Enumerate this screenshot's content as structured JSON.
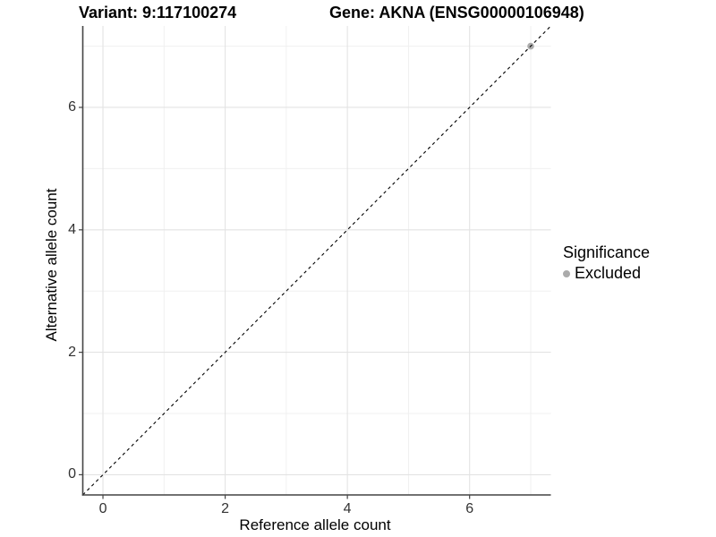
{
  "chart_data": {
    "type": "scatter",
    "titles": {
      "left": "Variant: 9:117100274",
      "right": "Gene: AKNA (ENSG00000106948)"
    },
    "xlabel": "Reference allele count",
    "ylabel": "Alternative allele count",
    "xlim": [
      -0.33,
      7.33
    ],
    "ylim": [
      -0.33,
      7.33
    ],
    "x_major_ticks": [
      0,
      2,
      4,
      6
    ],
    "y_major_ticks": [
      0,
      2,
      4,
      6
    ],
    "x_minor_gridlines": [
      1,
      3,
      5,
      7
    ],
    "y_minor_gridlines": [
      1,
      3,
      5,
      7
    ],
    "grid": true,
    "series": [
      {
        "name": "Excluded",
        "color": "#ababab",
        "points": [
          [
            7,
            7
          ]
        ]
      }
    ],
    "reference_line": {
      "slope": 1,
      "intercept": 0,
      "style": "dashed",
      "color": "#000000"
    },
    "legend": {
      "position": "right",
      "title": "Significance",
      "entries": [
        {
          "label": "Excluded",
          "color": "#ababab"
        }
      ]
    },
    "colors": {
      "background": "#ffffff",
      "grid_major": "#e3e3e3",
      "grid_minor": "#f0f0f0",
      "axis_line": "#444444",
      "tick_mark": "#444444",
      "tick_label": "#333333"
    }
  }
}
